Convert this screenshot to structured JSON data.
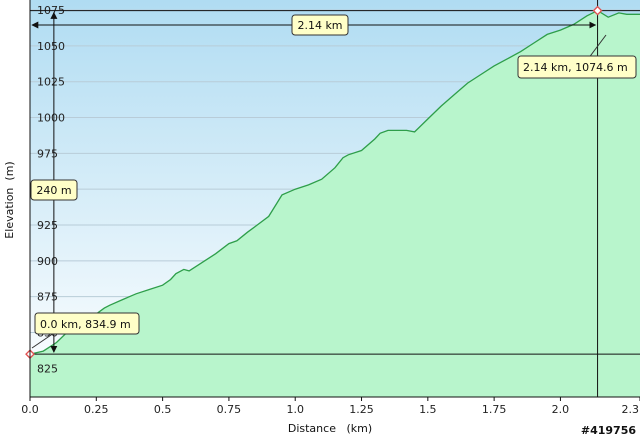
{
  "chart_data": {
    "type": "area",
    "title": "",
    "xlabel": "Distance   (km)",
    "ylabel": "Elevation  (m)",
    "xlim": [
      0,
      2.3
    ],
    "ylim": [
      805,
      1082
    ],
    "x_ticks": [
      "0.0",
      "0.25",
      "0.5",
      "0.75",
      "1.0",
      "1.25",
      "1.5",
      "1.75",
      "2.0",
      "2.3"
    ],
    "x_tick_values": [
      0,
      0.25,
      0.5,
      0.75,
      1.0,
      1.25,
      1.5,
      1.75,
      2.0,
      2.3
    ],
    "y_ticks": [
      "825",
      "850",
      "875",
      "900",
      "925",
      "950",
      "975",
      "1000",
      "1025",
      "1050",
      "1075"
    ],
    "y_tick_values": [
      825,
      850,
      875,
      900,
      925,
      950,
      975,
      1000,
      1025,
      1050,
      1075
    ],
    "grid": true,
    "colors": {
      "fill": "#b8f5cc",
      "line": "#2e9e4a",
      "sky_top": "#b0dcf2",
      "sky_bottom": "#ffffff",
      "gridline": "#b8ccd8",
      "marker": "#e05050"
    },
    "series": [
      {
        "x": [
          0.0,
          0.05,
          0.1,
          0.15,
          0.2,
          0.25,
          0.28,
          0.3,
          0.35,
          0.4,
          0.45,
          0.5,
          0.53,
          0.55,
          0.58,
          0.6,
          0.65,
          0.7,
          0.75,
          0.78,
          0.82,
          0.85,
          0.9,
          0.93,
          0.95,
          1.0,
          1.05,
          1.1,
          1.15,
          1.18,
          1.2,
          1.25,
          1.3,
          1.32,
          1.35,
          1.38,
          1.4,
          1.42,
          1.45,
          1.5,
          1.55,
          1.6,
          1.65,
          1.7,
          1.75,
          1.8,
          1.85,
          1.9,
          1.95,
          2.0,
          2.05,
          2.1,
          2.14,
          2.18,
          2.22,
          2.25,
          2.3
        ],
        "y": [
          834.9,
          837,
          843,
          852,
          858,
          863,
          867,
          869,
          873,
          877,
          880,
          883,
          887,
          891,
          894,
          893,
          899,
          905,
          912,
          914,
          920,
          924,
          931,
          940,
          946,
          950,
          953,
          957,
          965,
          972,
          974,
          977,
          985,
          989,
          991,
          991,
          991,
          991,
          990,
          999,
          1008,
          1016,
          1024,
          1030,
          1036,
          1041,
          1046,
          1052,
          1058,
          1061,
          1065,
          1071,
          1074.6,
          1070,
          1073,
          1072,
          1072
        ]
      }
    ],
    "annotations": {
      "span_distance": "2.14 km",
      "span_elevation": "240 m",
      "start_point": "0.0 km, 834.9 m",
      "end_point": "2.14 km, 1074.6 m"
    },
    "markers": [
      {
        "x": 0.0,
        "y": 834.9
      },
      {
        "x": 2.14,
        "y": 1074.6
      }
    ]
  },
  "watermark": "#419756"
}
